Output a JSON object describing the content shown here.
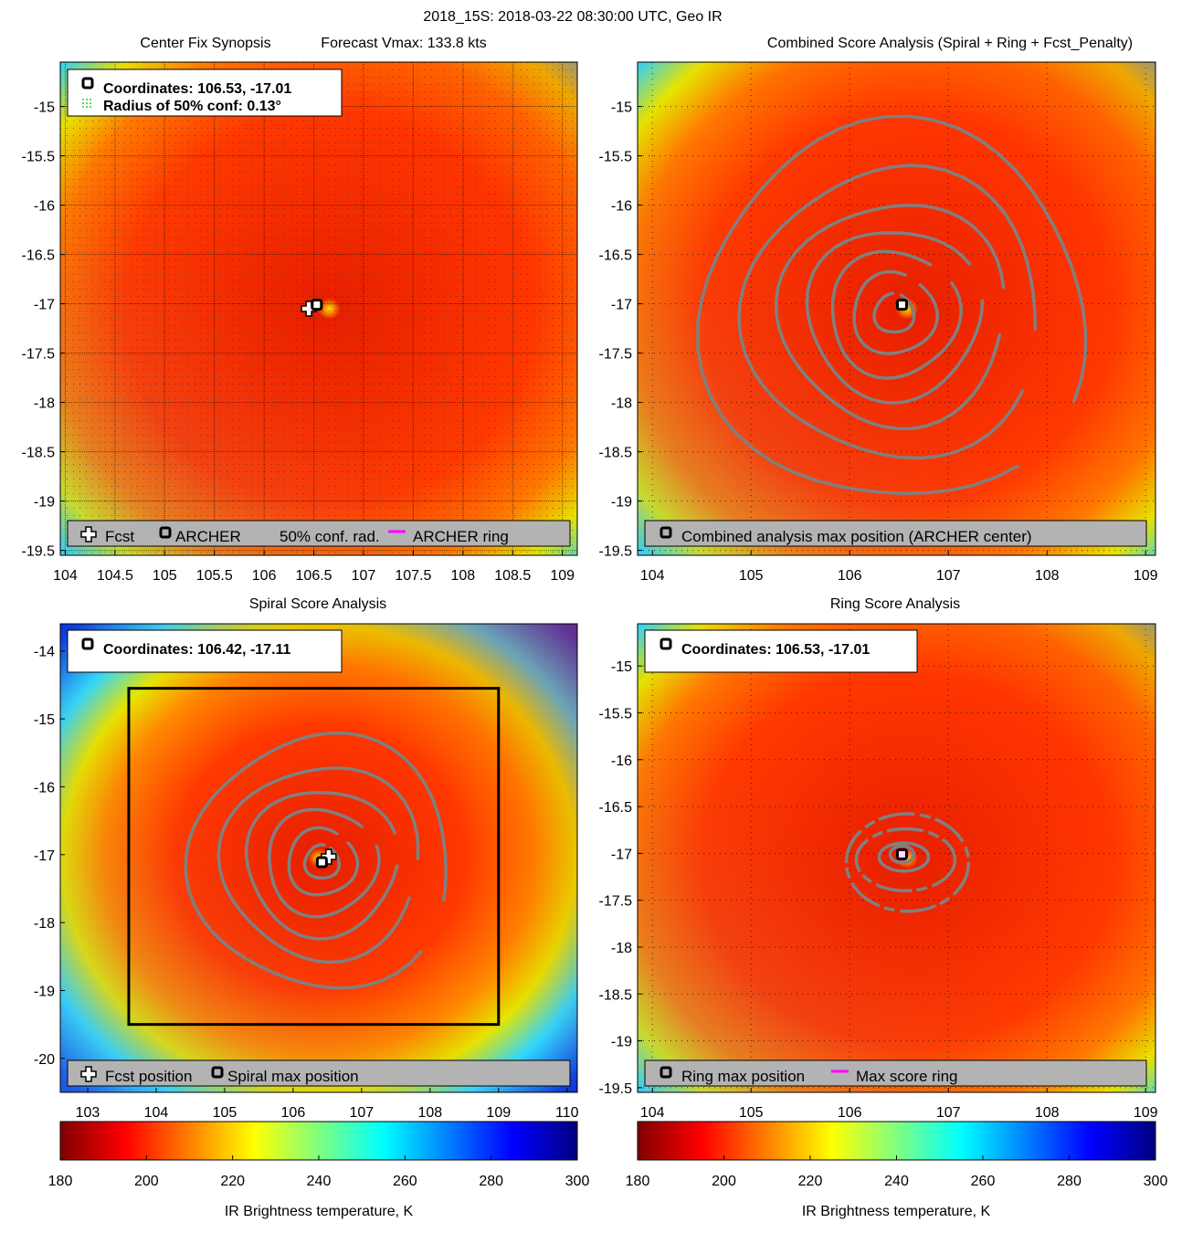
{
  "figure": {
    "title": "2018_15S: 2018-03-22 08:30:00 UTC, Geo IR"
  },
  "colors": {
    "contour": "#808080",
    "legend_bg": "#b3b3b3",
    "ring": "#ff00ff",
    "box": "#000000"
  },
  "chart_data": [
    {
      "id": "center_fix",
      "type": "heatmap",
      "title_left": "Center Fix Synopsis",
      "title_right": "Forecast Vmax: 133.8 kts",
      "xlim": [
        103.95,
        109.15
      ],
      "ylim": [
        -19.55,
        -14.55
      ],
      "xticks": [
        104,
        104.5,
        105,
        105.5,
        106,
        106.5,
        107,
        107.5,
        108,
        108.5,
        109
      ],
      "xtick_labels": [
        "104",
        "104.5",
        "105",
        "105.5",
        "106",
        "106.5",
        "107",
        "107.5",
        "108",
        "108.5",
        "109"
      ],
      "yticks": [
        -15,
        -15.5,
        -16,
        -16.5,
        -17,
        -17.5,
        -18,
        -18.5,
        -19,
        -19.5
      ],
      "ytick_labels": [
        "-15",
        "-15.5",
        "-16",
        "-16.5",
        "-17",
        "-17.5",
        "-18",
        "-18.5",
        "-19",
        "-19.5"
      ],
      "grid": "dense",
      "storm_center": [
        106.5,
        -17.02
      ],
      "info_lines": [
        "Coordinates: 106.53, -17.01",
        "Radius of 50% conf: 0.13°"
      ],
      "legend_items": [
        "Fcst",
        "ARCHER",
        "50% conf. rad.",
        "ARCHER ring"
      ],
      "markers": [
        {
          "kind": "fcst",
          "lon": 106.45,
          "lat": -17.05
        },
        {
          "kind": "archer",
          "lon": 106.53,
          "lat": -17.01
        }
      ]
    },
    {
      "id": "combined",
      "type": "heatmap",
      "title": "Combined Score Analysis (Spiral + Ring + Fcst_Penalty)",
      "xlim": [
        103.85,
        109.1
      ],
      "ylim": [
        -19.55,
        -14.55
      ],
      "xticks": [
        104,
        105,
        106,
        107,
        108,
        109
      ],
      "xtick_labels": [
        "104",
        "105",
        "106",
        "107",
        "108",
        "109"
      ],
      "yticks": [
        -15,
        -15.5,
        -16,
        -16.5,
        -17,
        -17.5,
        -18,
        -18.5,
        -19,
        -19.5
      ],
      "ytick_labels": [
        "-15",
        "-15.5",
        "-16",
        "-16.5",
        "-17",
        "-17.5",
        "-18",
        "-18.5",
        "-19",
        "-19.5"
      ],
      "grid": "sparse",
      "storm_center": [
        106.5,
        -17.02
      ],
      "contour_center": [
        106.45,
        -17.1
      ],
      "legend_items": [
        "Combined analysis max position (ARCHER center)"
      ],
      "markers": [
        {
          "kind": "archer",
          "lon": 106.53,
          "lat": -17.01
        }
      ]
    },
    {
      "id": "spiral",
      "type": "heatmap",
      "title": "Spiral Score Analysis",
      "xlim": [
        102.6,
        110.15
      ],
      "ylim": [
        -20.5,
        -13.6
      ],
      "xticks": [
        103,
        104,
        105,
        106,
        107,
        108,
        109,
        110
      ],
      "xtick_labels": [
        "103",
        "104",
        "105",
        "106",
        "107",
        "108",
        "109",
        "110"
      ],
      "yticks": [
        -14,
        -15,
        -16,
        -17,
        -18,
        -19,
        -20
      ],
      "ytick_labels": [
        "-14",
        "-15",
        "-16",
        "-17",
        "-18",
        "-19",
        "-20"
      ],
      "grid": "none",
      "storm_center": [
        106.5,
        -17.02
      ],
      "contour_center": [
        106.42,
        -17.11
      ],
      "search_box": {
        "lon_min": 103.6,
        "lon_max": 109.0,
        "lat_min": -19.5,
        "lat_max": -14.55
      },
      "info_lines": [
        "Coordinates: 106.42, -17.11"
      ],
      "legend_items": [
        "Fcst position",
        "Spiral max position"
      ],
      "markers": [
        {
          "kind": "fcst",
          "lon": 106.52,
          "lat": -17.03
        },
        {
          "kind": "archer",
          "lon": 106.42,
          "lat": -17.11
        }
      ]
    },
    {
      "id": "ring",
      "type": "heatmap",
      "title": "Ring Score Analysis",
      "xlim": [
        103.85,
        109.1
      ],
      "ylim": [
        -19.55,
        -14.55
      ],
      "xticks": [
        104,
        105,
        106,
        107,
        108,
        109
      ],
      "xtick_labels": [
        "104",
        "105",
        "106",
        "107",
        "108",
        "109"
      ],
      "yticks": [
        -15,
        -15.5,
        -16,
        -16.5,
        -17,
        -17.5,
        -18,
        -18.5,
        -19,
        -19.5
      ],
      "ytick_labels": [
        "-15",
        "-15.5",
        "-16",
        "-16.5",
        "-17",
        "-17.5",
        "-18",
        "-18.5",
        "-19",
        "-19.5"
      ],
      "grid": "sparse",
      "storm_center": [
        106.5,
        -17.02
      ],
      "info_lines": [
        "Coordinates: 106.53, -17.01"
      ],
      "legend_items": [
        "Ring max position",
        "Max score ring"
      ],
      "markers": [
        {
          "kind": "archer",
          "lon": 106.53,
          "lat": -17.01
        }
      ]
    }
  ],
  "colorbars": [
    {
      "id": "cb-left",
      "ticks": [
        180,
        200,
        220,
        240,
        260,
        280,
        300
      ],
      "tick_labels": [
        "180",
        "200",
        "220",
        "240",
        "260",
        "280",
        "300"
      ],
      "label": "IR Brightness temperature, K",
      "range": [
        180,
        300
      ]
    },
    {
      "id": "cb-right",
      "ticks": [
        180,
        200,
        220,
        240,
        260,
        280,
        300
      ],
      "tick_labels": [
        "180",
        "200",
        "220",
        "240",
        "260",
        "280",
        "300"
      ],
      "label": "IR Brightness temperature, K",
      "range": [
        180,
        300
      ]
    }
  ]
}
